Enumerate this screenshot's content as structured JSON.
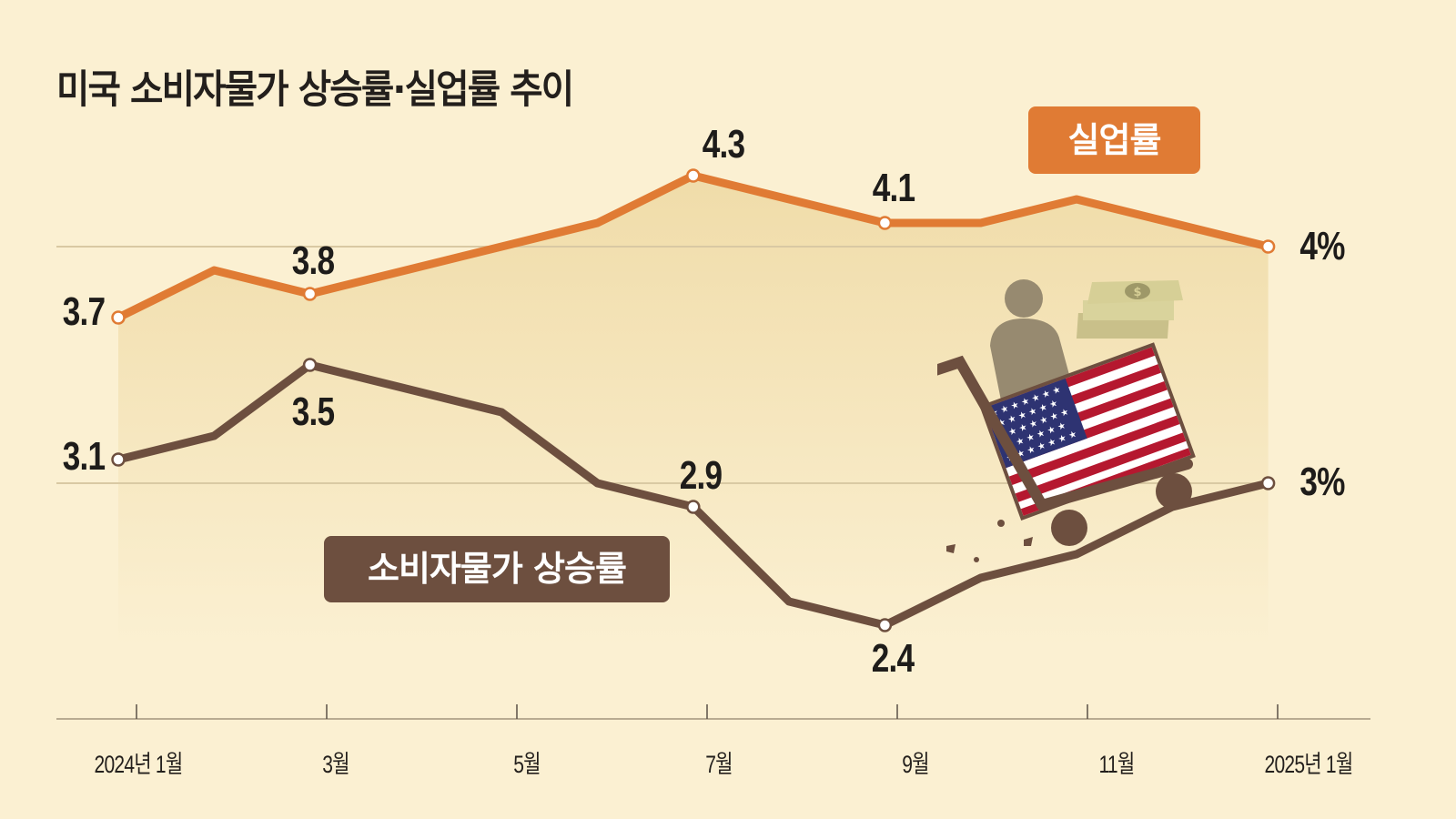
{
  "title": "미국 소비자물가 상승률·실업률 추이",
  "legend": {
    "unemployment": "실업률",
    "cpi": "소비자물가 상승률"
  },
  "colors": {
    "background": "#fbf0d2",
    "unemployment": "#e07b34",
    "cpi": "#6d4f3f",
    "area_fill": "#f2dfb0",
    "gridline": "#d9c9a3",
    "axis": "#b8ab92"
  },
  "x_axis": {
    "ticks": [
      "2024년 1월",
      "3월",
      "5월",
      "7월",
      "9월",
      "11월",
      "2025년 1월"
    ]
  },
  "labels": {
    "u_jan24": "3.7",
    "u_mar": "3.8",
    "u_jul": "4.3",
    "u_sep": "4.1",
    "u_jan25": "4%",
    "c_jan24": "3.1",
    "c_mar": "3.5",
    "c_jul": "2.9",
    "c_sep": "2.4",
    "c_jan25": "3%"
  },
  "chart_data": {
    "type": "line",
    "title": "미국 소비자물가 상승률·실업률 추이",
    "xlabel": "",
    "ylabel": "",
    "x": [
      "2024-01",
      "2024-02",
      "2024-03",
      "2024-04",
      "2024-05",
      "2024-06",
      "2024-07",
      "2024-08",
      "2024-09",
      "2024-10",
      "2024-11",
      "2024-12",
      "2025-01"
    ],
    "x_tick_labels": [
      "2024년 1월",
      "3월",
      "5월",
      "7월",
      "9월",
      "11월",
      "2025년 1월"
    ],
    "series": [
      {
        "name": "실업률",
        "unit": "%",
        "color": "#e07b34",
        "values": [
          3.7,
          3.9,
          3.8,
          3.9,
          4.0,
          4.1,
          4.3,
          4.2,
          4.1,
          4.1,
          4.2,
          4.1,
          4.0
        ]
      },
      {
        "name": "소비자물가 상승률",
        "unit": "%",
        "color": "#6d4f3f",
        "values": [
          3.1,
          3.2,
          3.5,
          3.4,
          3.3,
          3.0,
          2.9,
          2.5,
          2.4,
          2.6,
          2.7,
          2.9,
          3.0
        ]
      }
    ],
    "annotations": [
      "3.7",
      "3.8",
      "4.3",
      "4.1",
      "4%",
      "3.1",
      "3.5",
      "2.9",
      "2.4",
      "3%"
    ],
    "gridlines": [
      3.0,
      4.0
    ],
    "ylim": [
      2.0,
      4.6
    ],
    "grid": true,
    "legend_position": "inline labels",
    "illustration": "shopping cart with US flag, person and dollar bills"
  }
}
